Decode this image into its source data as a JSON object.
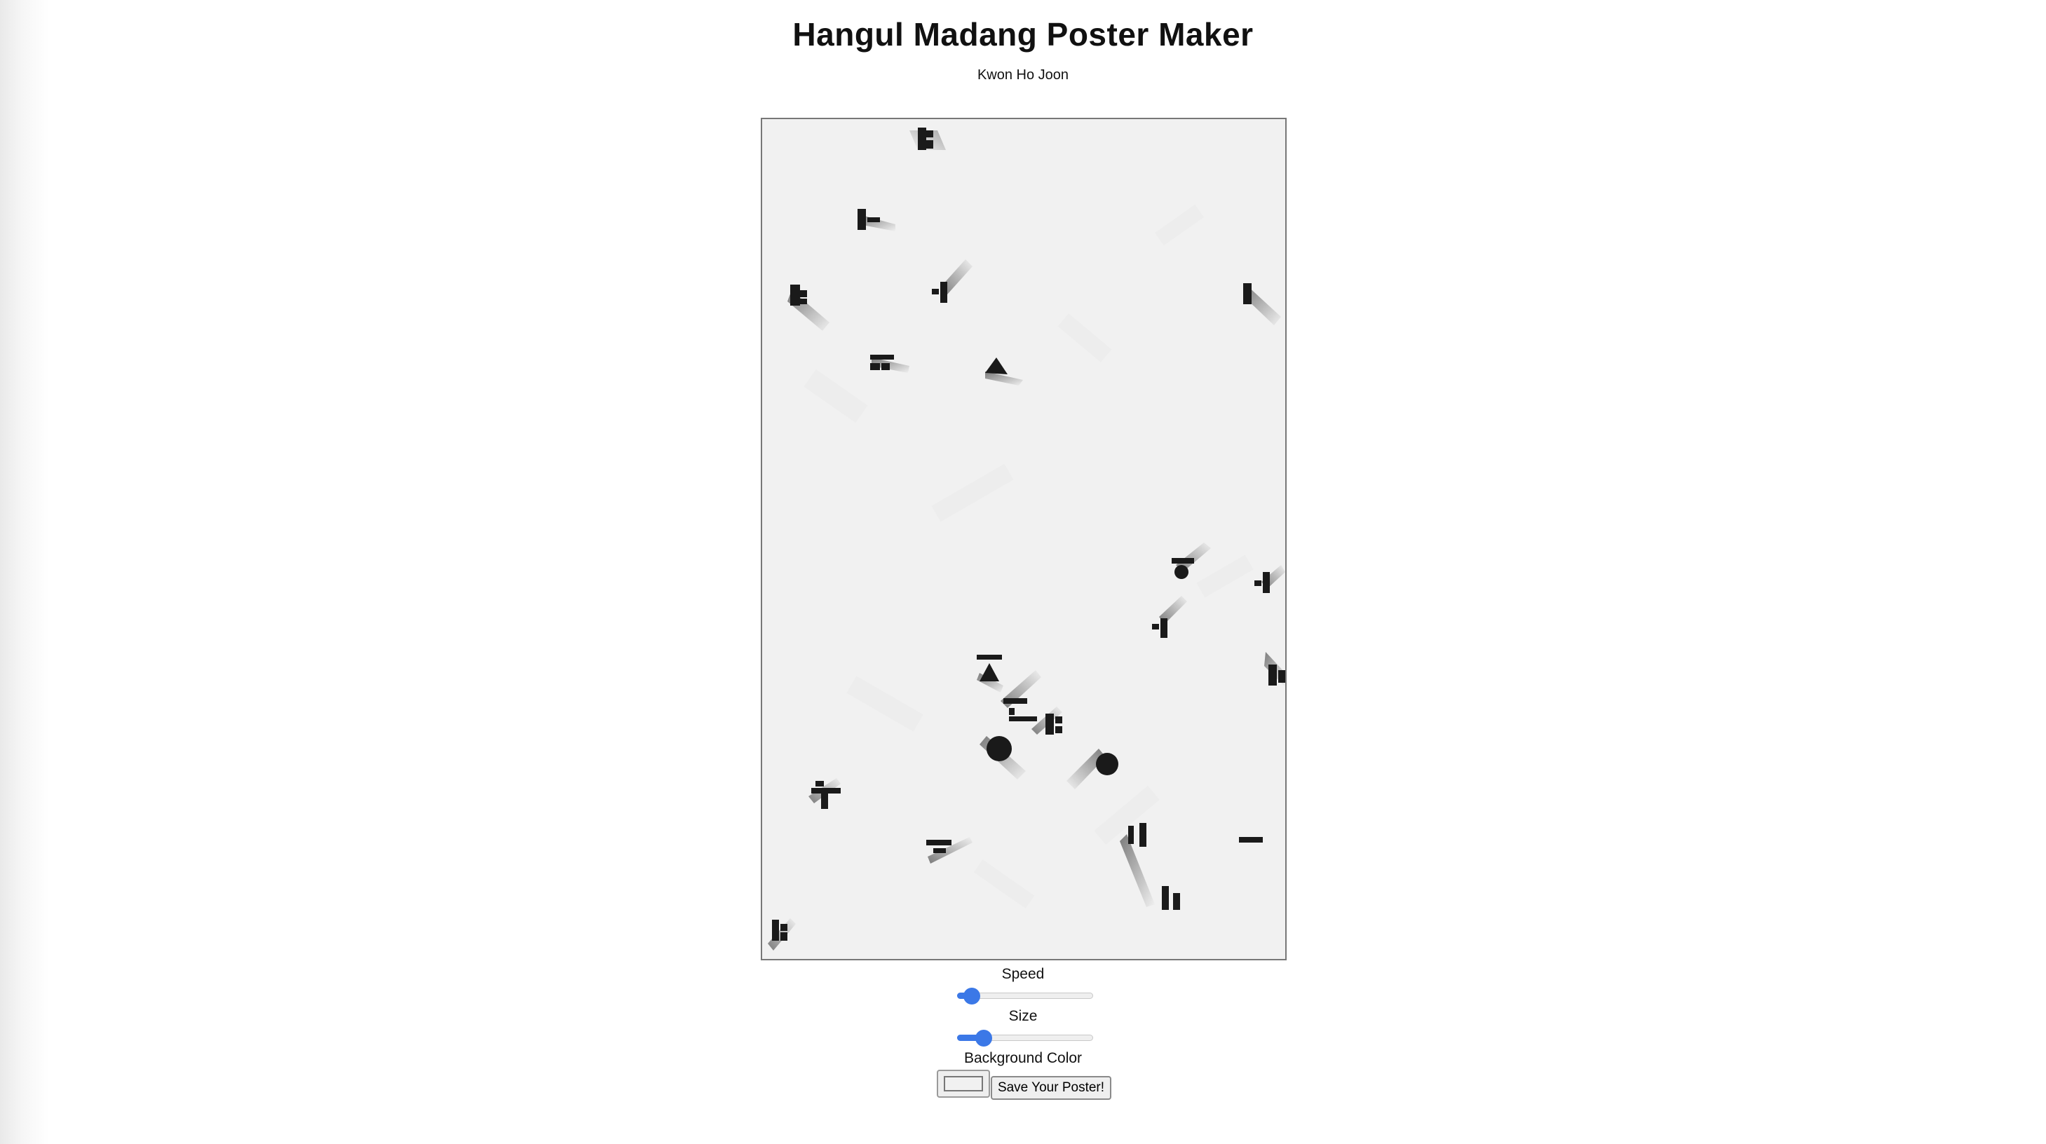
{
  "header": {
    "title": "Hangul Madang Poster Maker",
    "author": "Kwon Ho Joon"
  },
  "poster": {
    "background_color": "#f1f1f1",
    "glyph_color": "#1a1a1a"
  },
  "controls": {
    "speed": {
      "label": "Speed",
      "value": 0.05
    },
    "size": {
      "label": "Size",
      "value": 0.15
    },
    "background": {
      "label": "Background Color",
      "value": "#f1f1f1"
    },
    "save_label": "Save Your Poster!"
  },
  "colors": {
    "accent": "#3b78e7"
  }
}
